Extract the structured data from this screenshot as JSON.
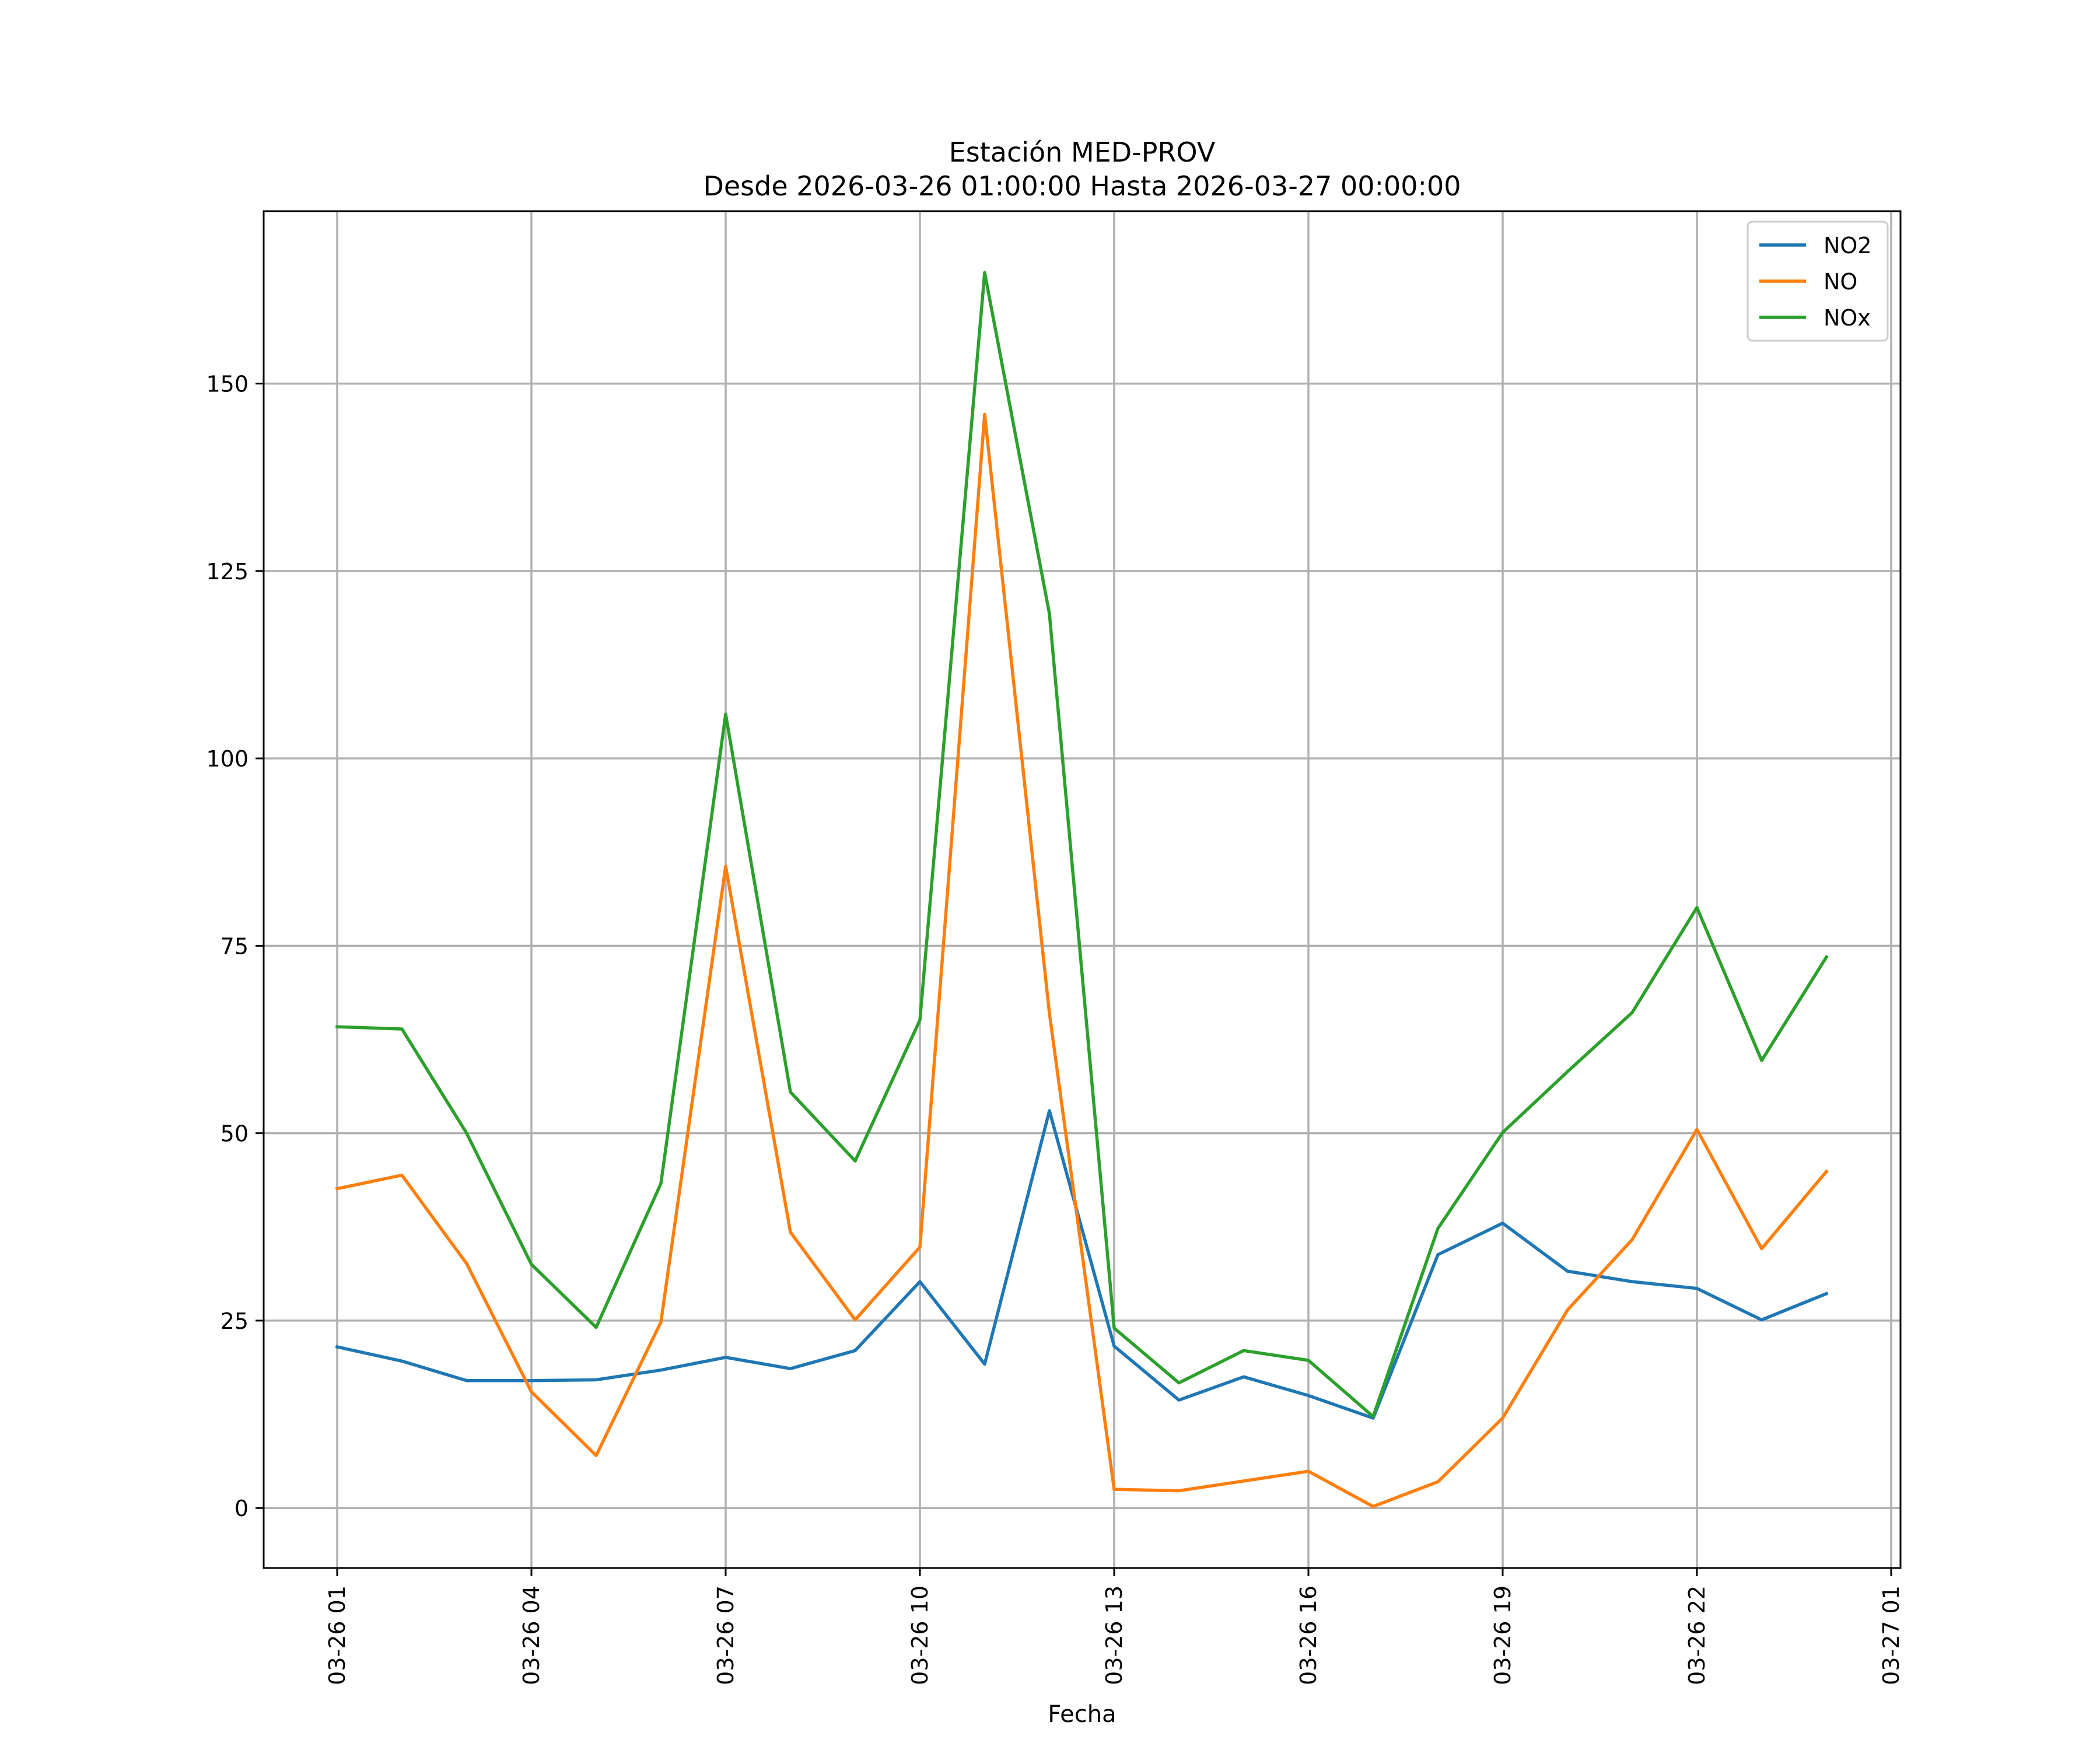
{
  "chart_data": {
    "type": "line",
    "title_lines": [
      "Estación MED-PROV",
      "Desde 2026-03-26 01:00:00 Hasta 2026-03-27 00:00:00"
    ],
    "xlabel": "Fecha",
    "ylabel": "",
    "x": [
      "03-26 01",
      "03-26 02",
      "03-26 03",
      "03-26 04",
      "03-26 05",
      "03-26 06",
      "03-26 07",
      "03-26 08",
      "03-26 09",
      "03-26 10",
      "03-26 11",
      "03-26 12",
      "03-26 13",
      "03-26 14",
      "03-26 15",
      "03-26 16",
      "03-26 17",
      "03-26 18",
      "03-26 19",
      "03-26 20",
      "03-26 21",
      "03-26 22",
      "03-26 23",
      "03-27 00"
    ],
    "x_ticks": [
      "03-26 01",
      "03-26 04",
      "03-26 07",
      "03-26 10",
      "03-26 13",
      "03-26 16",
      "03-26 19",
      "03-26 22",
      "03-27 01"
    ],
    "xlim": [
      "03-26 00:00 (approx)",
      "03-27 01:00 (approx)"
    ],
    "y_ticks": [
      0,
      25,
      50,
      75,
      100,
      125,
      150
    ],
    "ylim": [
      -8,
      173
    ],
    "grid": true,
    "legend_position": "top-right",
    "series": [
      {
        "name": "NO2",
        "color": "#1f77b4",
        "values": [
          21.5,
          19.6,
          17.0,
          17.0,
          17.1,
          18.4,
          20.1,
          18.6,
          21.0,
          30.2,
          19.2,
          53.0,
          21.6,
          14.4,
          17.5,
          15.0,
          12.0,
          33.8,
          38.0,
          31.6,
          30.2,
          29.3,
          25.1,
          28.6
        ]
      },
      {
        "name": "NO",
        "color": "#ff7f0e",
        "values": [
          42.6,
          44.4,
          32.6,
          15.5,
          7.0,
          24.8,
          85.6,
          36.8,
          25.1,
          34.8,
          145.9,
          66.0,
          2.5,
          2.3,
          3.6,
          4.9,
          0.2,
          3.5,
          12.0,
          26.4,
          35.8,
          50.5,
          34.6,
          44.9
        ]
      },
      {
        "name": "NOx",
        "color": "#2ca02c",
        "values": [
          64.2,
          63.9,
          50.0,
          32.5,
          24.1,
          43.3,
          105.9,
          55.5,
          46.3,
          65.1,
          164.8,
          119.3,
          24.0,
          16.7,
          21.0,
          19.7,
          12.2,
          37.3,
          50.1,
          58.2,
          66.1,
          80.1,
          59.7,
          73.5
        ]
      }
    ]
  }
}
